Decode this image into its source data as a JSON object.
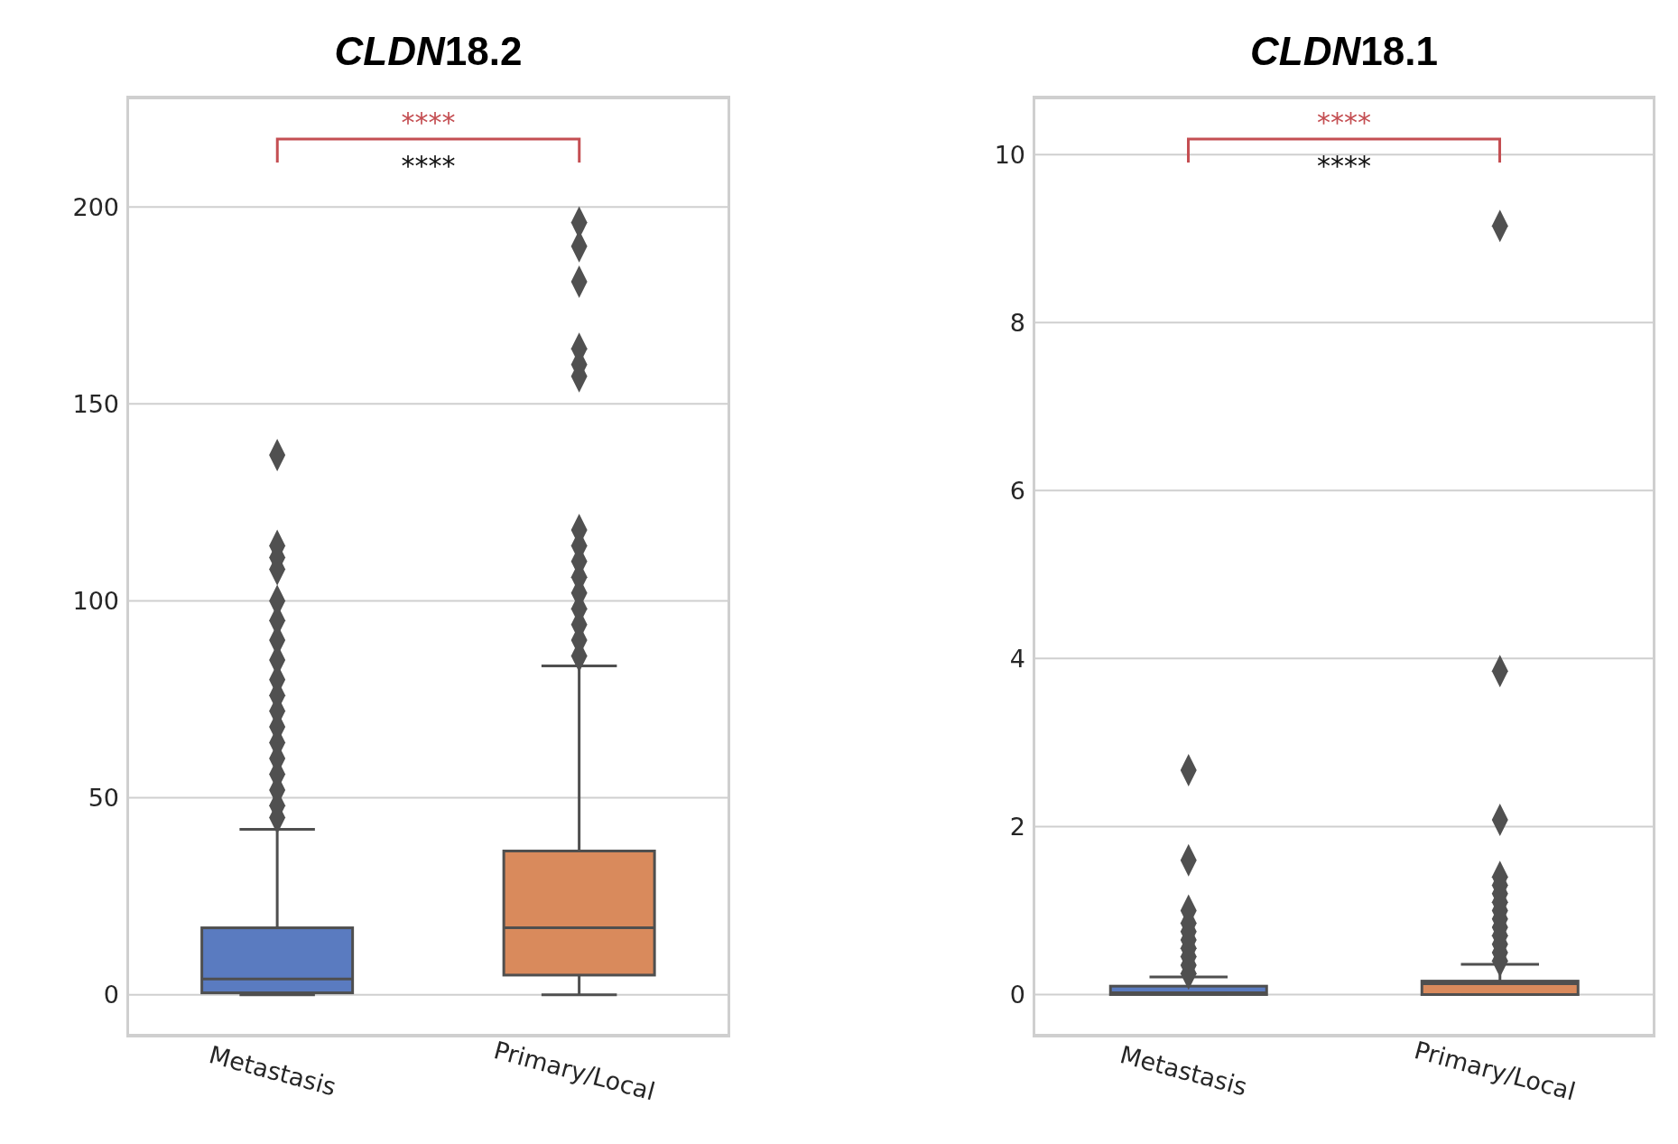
{
  "chart_data": [
    {
      "type": "box",
      "title": "CLDN18.2",
      "categories": [
        "Metastasis",
        "Primary/Local"
      ],
      "colors": [
        "#5a7bc0",
        "#d98a5c"
      ],
      "boxes": [
        {
          "low": 0,
          "q1": 0.5,
          "median": 4,
          "q3": 17,
          "high": 42,
          "outliers": [
            45,
            48,
            52,
            56,
            60,
            64,
            68,
            72,
            76,
            80,
            85,
            90,
            95,
            100,
            108,
            111,
            114,
            137
          ]
        },
        {
          "low": 0,
          "q1": 5,
          "median": 17,
          "q3": 36.5,
          "high": 83.5,
          "outliers": [
            86,
            90,
            94,
            98,
            102,
            106,
            110,
            114,
            118,
            157,
            160,
            164,
            181,
            190,
            196
          ]
        }
      ],
      "ylim": [
        -10.6,
        228
      ],
      "yticks": [
        0,
        50,
        100,
        150,
        200
      ],
      "grid": "y",
      "annotations": [
        "****",
        "****"
      ]
    },
    {
      "type": "box",
      "title": "CLDN18.1",
      "categories": [
        "Metastasis",
        "Primary/Local"
      ],
      "colors": [
        "#5a7bc0",
        "#d98a5c"
      ],
      "boxes": [
        {
          "low": 0,
          "q1": 0,
          "median": 0.02,
          "q3": 0.1,
          "high": 0.21,
          "outliers": [
            0.25,
            0.35,
            0.45,
            0.55,
            0.65,
            0.75,
            0.85,
            1.0,
            1.6,
            2.67
          ]
        },
        {
          "low": 0,
          "q1": 0,
          "median": 0.13,
          "q3": 0.16,
          "high": 0.36,
          "outliers": [
            0.4,
            0.5,
            0.6,
            0.7,
            0.8,
            0.9,
            1.0,
            1.1,
            1.2,
            1.3,
            1.4,
            2.08,
            3.85,
            9.15
          ]
        }
      ],
      "ylim": [
        -0.5,
        10.69
      ],
      "yticks": [
        0,
        2,
        4,
        6,
        8,
        10
      ],
      "grid": "y",
      "annotations": [
        "****",
        "****"
      ]
    }
  ]
}
